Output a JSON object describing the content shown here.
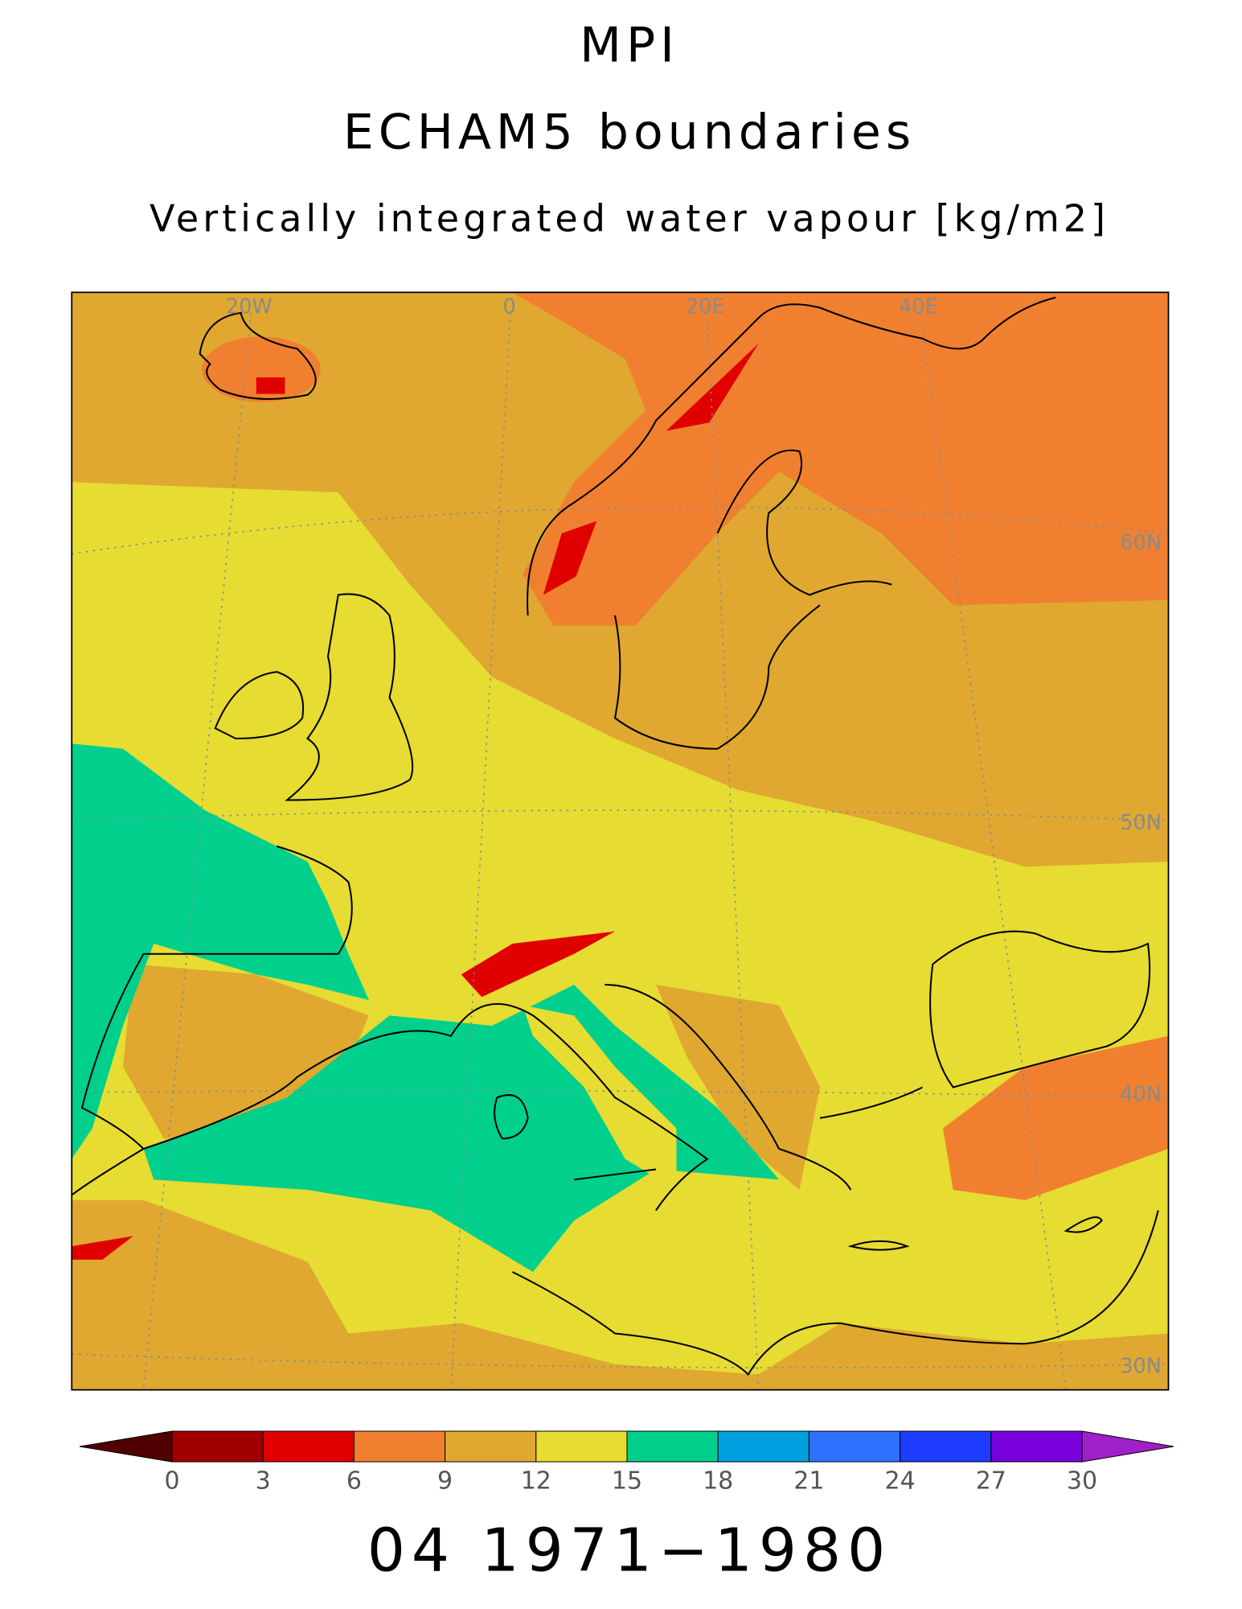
{
  "header": {
    "title": "MPI",
    "subtitle": "ECHAM5 boundaries",
    "variable": "Vertically integrated water vapour [kg/m2]"
  },
  "map": {
    "lon_labels": [
      "20W",
      "0",
      "20E",
      "40E"
    ],
    "lat_labels": [
      "60N",
      "50N",
      "40N",
      "30N"
    ]
  },
  "colorbar": {
    "ticks": [
      0,
      3,
      6,
      9,
      12,
      15,
      18,
      21,
      24,
      27,
      30
    ],
    "colors": [
      "#a00000",
      "#e00000",
      "#f08030",
      "#e0a830",
      "#e6dc32",
      "#00d08c",
      "#00a0e0",
      "#3070ff",
      "#1e3cff",
      "#7800dc"
    ],
    "under_color": "#500000",
    "over_color": "#a020c8"
  },
  "footer": "04 1971−1980"
}
